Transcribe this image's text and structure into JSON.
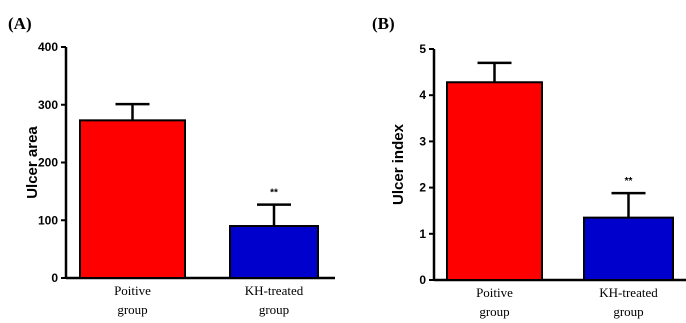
{
  "chart_data": [
    {
      "type": "bar",
      "panel_label": "(A)",
      "categories": [
        "Poitive\ngroup",
        "KH-treated\ngroup"
      ],
      "values": [
        273,
        90
      ],
      "errors": [
        28,
        37
      ],
      "colors": [
        "#ff0000",
        "#0000cc"
      ],
      "significance": [
        "",
        "**"
      ],
      "ylabel": "Ulcer area",
      "xlabel": "",
      "ylim": [
        0,
        400
      ],
      "yticks": [
        "0",
        "100",
        "200",
        "300",
        "400"
      ],
      "grid": false
    },
    {
      "type": "bar",
      "panel_label": "(B)",
      "categories": [
        "Poitive\ngroup",
        "KH-treated\ngroup"
      ],
      "values": [
        4.28,
        1.35
      ],
      "errors": [
        0.42,
        0.53
      ],
      "colors": [
        "#ff0000",
        "#0000cc"
      ],
      "significance": [
        "",
        "**"
      ],
      "ylabel": "Ulcer index",
      "xlabel": "",
      "ylim": [
        0,
        5
      ],
      "yticks": [
        "0",
        "1",
        "2",
        "3",
        "4",
        "5"
      ],
      "grid": false
    }
  ]
}
